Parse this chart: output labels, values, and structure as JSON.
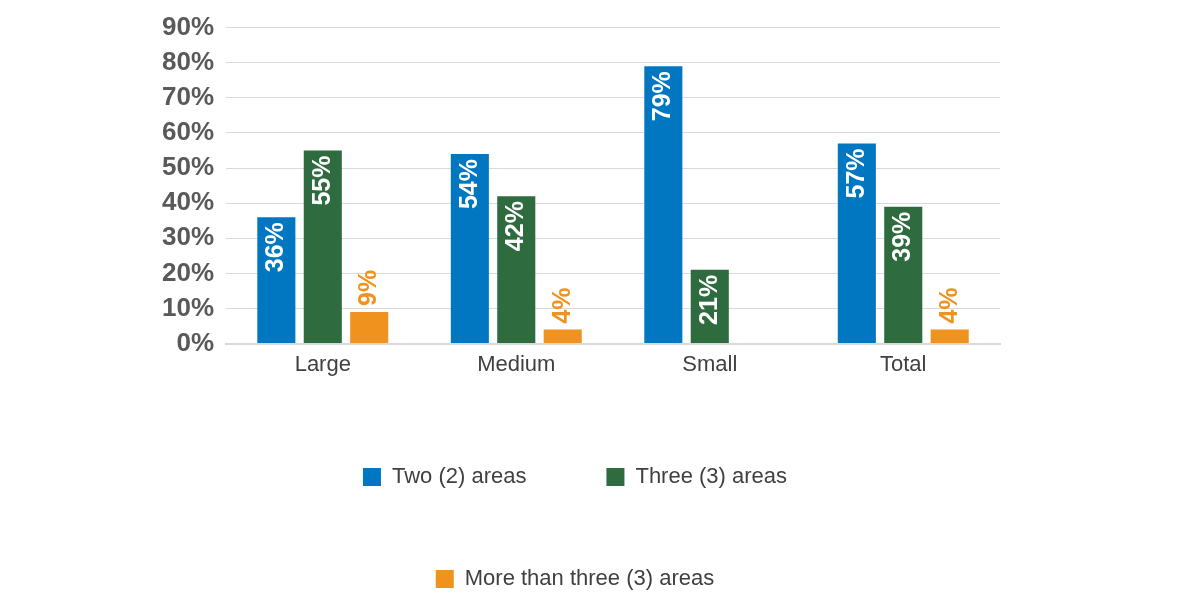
{
  "chart_data": {
    "type": "bar",
    "categories": [
      "Large",
      "Medium",
      "Small",
      "Total"
    ],
    "series": [
      {
        "name": "Two (2) areas",
        "color": "#0077c0",
        "values": [
          36,
          54,
          79,
          57
        ],
        "value_labels": [
          "36%",
          "54%",
          "79%",
          "57%"
        ]
      },
      {
        "name": "Three (3) areas",
        "color": "#2e6b3e",
        "values": [
          55,
          42,
          21,
          39
        ],
        "value_labels": [
          "55%",
          "42%",
          "21%",
          "39%"
        ]
      },
      {
        "name": "More than three (3) areas",
        "color": "#f0921e",
        "values": [
          9,
          4,
          null,
          4
        ],
        "value_labels": [
          "9%",
          "4%",
          null,
          "4%"
        ]
      }
    ],
    "ylim": [
      0,
      90
    ],
    "yticks": [
      {
        "value": 0,
        "label": "0%"
      },
      {
        "value": 10,
        "label": "10%"
      },
      {
        "value": 20,
        "label": "20%"
      },
      {
        "value": 30,
        "label": "30%"
      },
      {
        "value": 40,
        "label": "40%"
      },
      {
        "value": 50,
        "label": "50%"
      },
      {
        "value": 60,
        "label": "60%"
      },
      {
        "value": 70,
        "label": "70%"
      },
      {
        "value": 80,
        "label": "80%"
      },
      {
        "value": 90,
        "label": "90%"
      }
    ],
    "grid": "y",
    "legend": "bottom"
  }
}
